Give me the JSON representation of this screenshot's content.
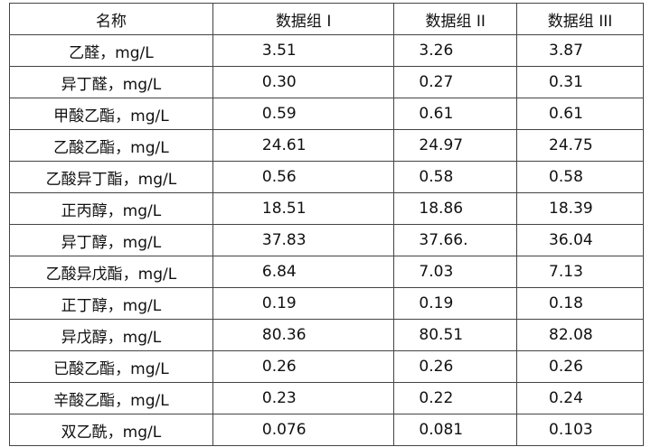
{
  "table": {
    "header": [
      "名称",
      "数据组 I",
      "数据组 II",
      "数据组 III"
    ],
    "rows": [
      [
        "乙醛，mg/L",
        "3.51",
        "3.26",
        "3.87"
      ],
      [
        "异丁醛，mg/L",
        "0.30",
        "0.27",
        "0.31"
      ],
      [
        "甲酸乙酯，mg/L",
        "0.59",
        "0.61",
        "0.61"
      ],
      [
        "乙酸乙酯，mg/L",
        "24.61",
        "24.97",
        "24.75"
      ],
      [
        "乙酸异丁酯，mg/L",
        "0.56",
        "0.58",
        "0.58"
      ],
      [
        "正丙醇，mg/L",
        "18.51",
        "18.86",
        "18.39"
      ],
      [
        "异丁醇，mg/L",
        "37.83",
        "37.66.",
        "36.04"
      ],
      [
        "乙酸异戊酯，mg/L",
        "6.84",
        "7.03",
        "7.13"
      ],
      [
        "正丁醇，mg/L",
        "0.19",
        "0.19",
        "0.18"
      ],
      [
        "异戊醇，mg/L",
        "80.36",
        "80.51",
        "82.08"
      ],
      [
        "已酸乙酯，mg/L",
        "0.26",
        "0.26",
        "0.26"
      ],
      [
        "辛酸乙酯，mg/L",
        "0.23",
        "0.22",
        "0.24"
      ],
      [
        "双乙酰，mg/L",
        "0.076",
        "0.081",
        "0.103"
      ]
    ]
  }
}
